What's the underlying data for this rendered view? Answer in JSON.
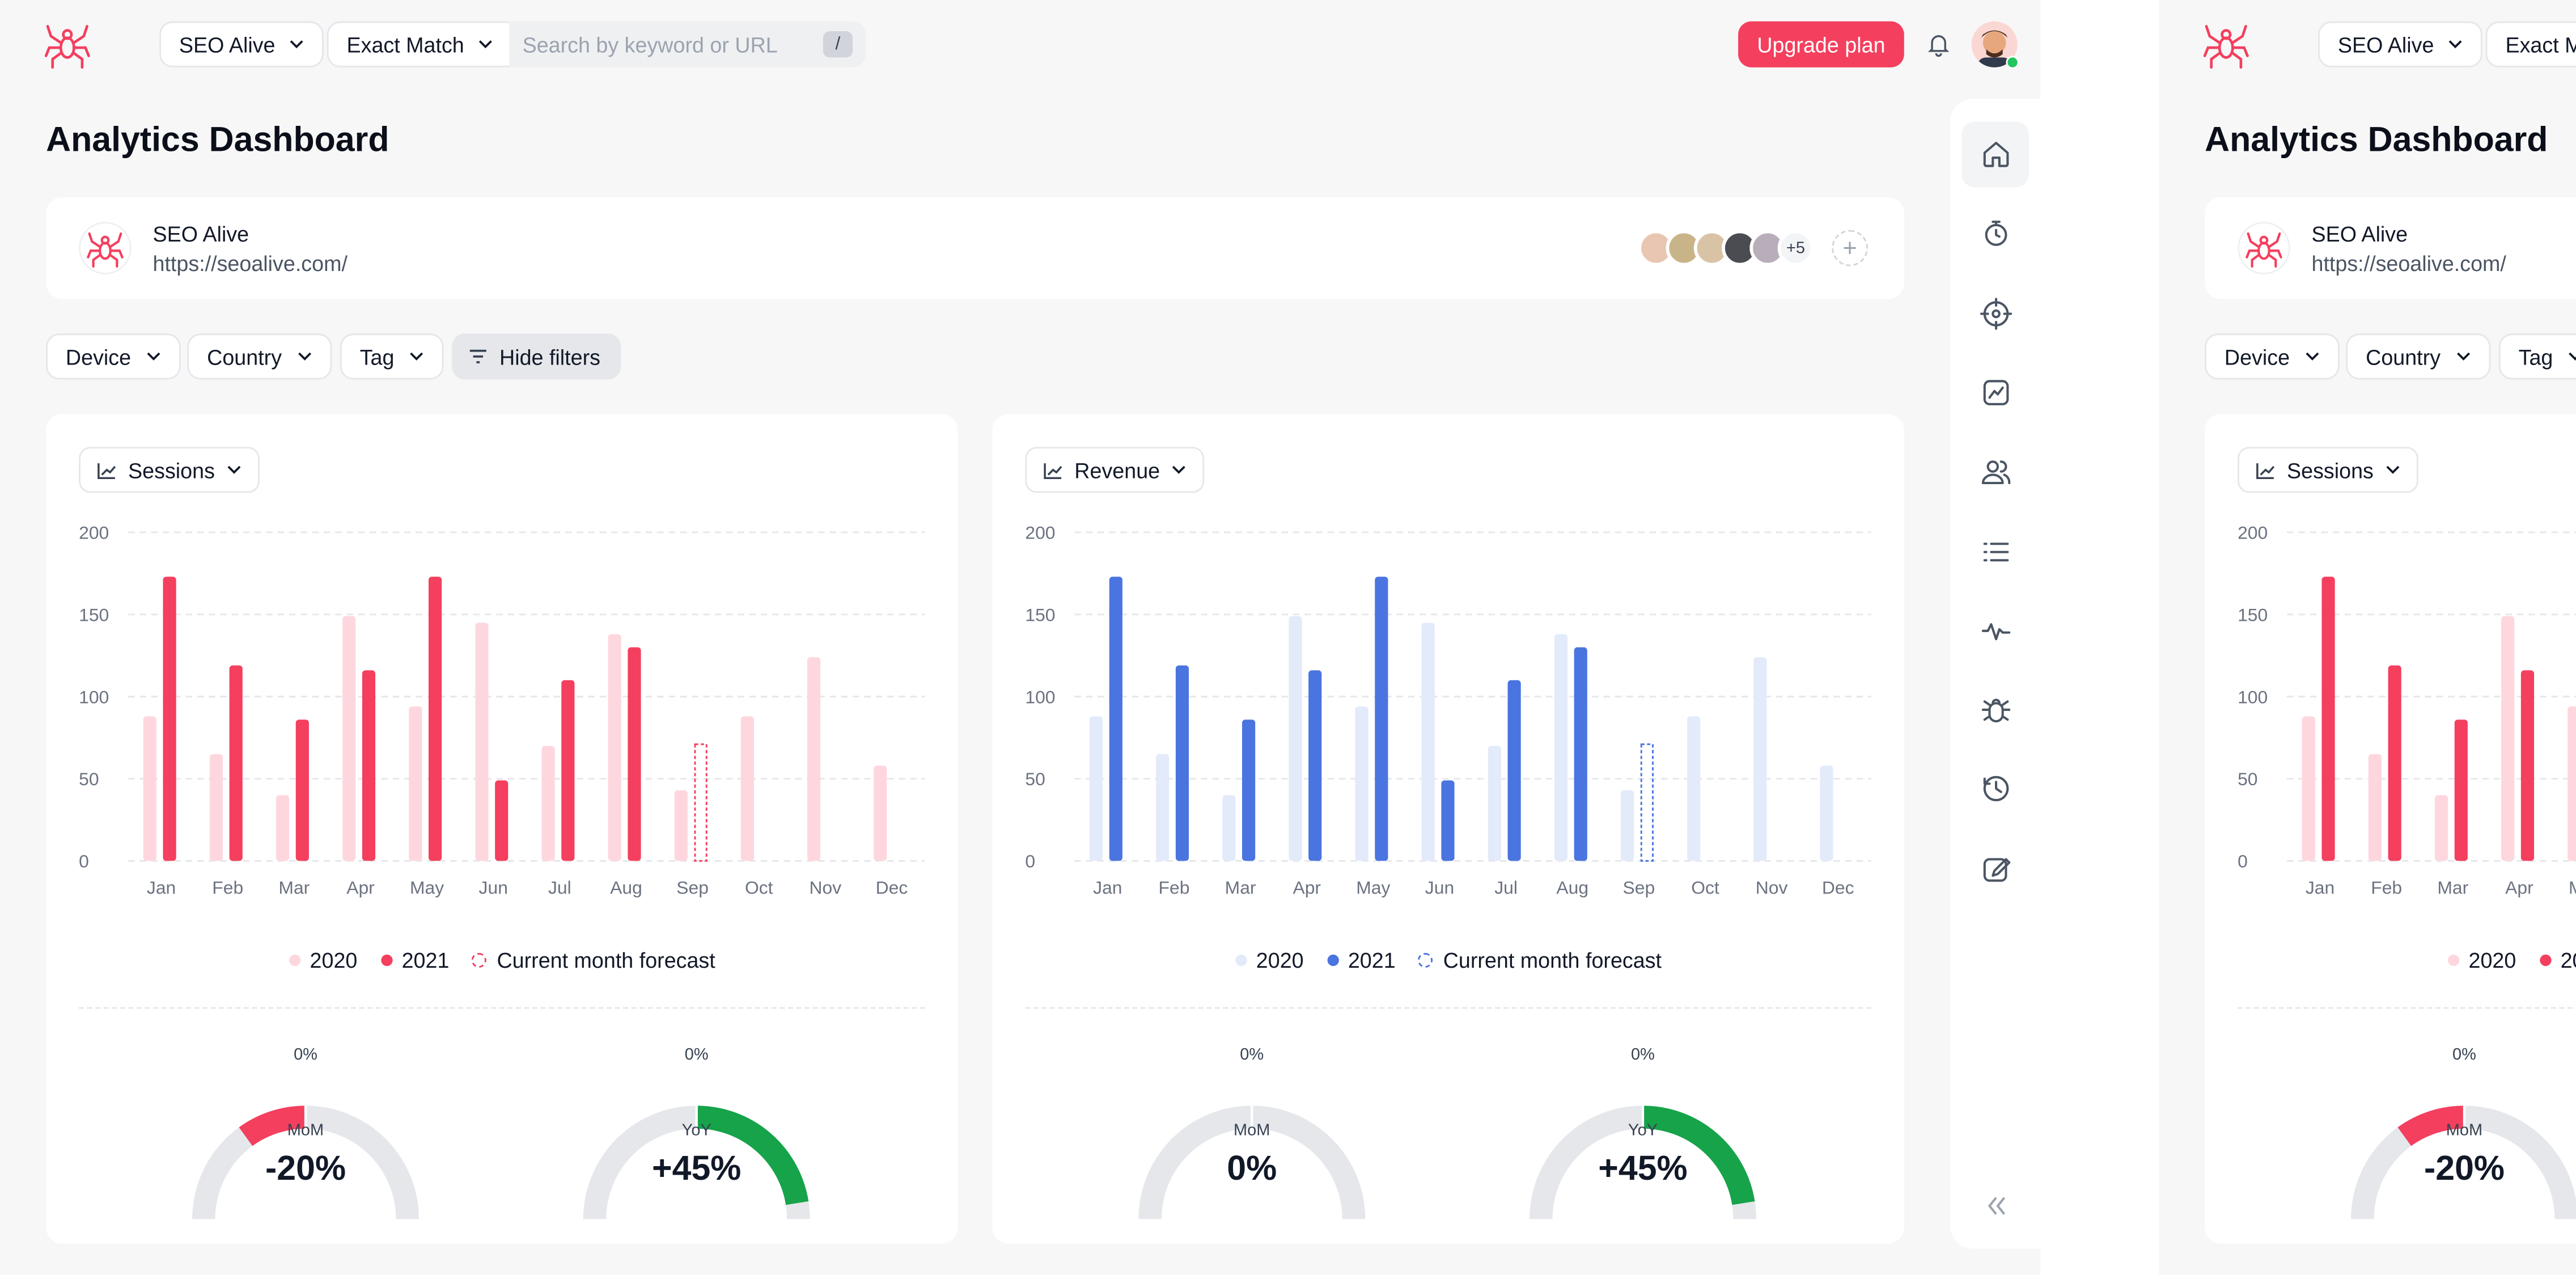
{
  "topbar": {
    "project": "SEO Alive",
    "match_mode": "Exact Match",
    "search_placeholder": "Search by keyword or URL",
    "search_shortcut": "/",
    "upgrade": "Upgrade plan"
  },
  "page": {
    "title": "Analytics Dashboard"
  },
  "site": {
    "name": "SEO Alive",
    "url": "https://seoalive.com/",
    "extra_members": "+5"
  },
  "filters": {
    "device": "Device",
    "country": "Country",
    "tag": "Tag",
    "hide_filters": "Hide filters"
  },
  "colors": {
    "brand": "#f43f5e",
    "sessions_2020": "#fed7de",
    "sessions_2021": "#f43f5e",
    "revenue_2020": "#e3eafa",
    "revenue_2021": "#4a74e0",
    "gauge_track": "#e5e7eb",
    "gauge_positive": "#16a34a",
    "gauge_negative": "#f43f5e"
  },
  "sessions_card": {
    "metric": "Sessions",
    "legend": {
      "a": "2020",
      "b": "2021",
      "forecast": "Current month forecast"
    },
    "mom": {
      "top": "0%",
      "label": "MoM",
      "value": "-20%",
      "fraction": -0.2
    },
    "yoy": {
      "top": "0%",
      "label": "YoY",
      "value": "+45%",
      "fraction": 0.45
    }
  },
  "revenue_card": {
    "metric": "Revenue",
    "legend": {
      "a": "2020",
      "b": "2021",
      "forecast": "Current month forecast"
    },
    "mom": {
      "top": "0%",
      "label": "MoM",
      "value": "0%",
      "fraction": 0
    },
    "yoy": {
      "top": "0%",
      "label": "YoY",
      "value": "+45%",
      "fraction": 0.45
    }
  },
  "sidebar": {
    "icons": [
      "home-icon",
      "timer-icon",
      "target-icon",
      "trend-chart-icon",
      "users-icon",
      "list-icon",
      "activity-icon",
      "bug-icon",
      "history-icon",
      "edit-icon"
    ]
  },
  "chart_data": [
    {
      "type": "bar",
      "categories": [
        "Jan",
        "Feb",
        "Mar",
        "Apr",
        "May",
        "Jun",
        "Jul",
        "Aug",
        "Sep",
        "Oct",
        "Nov",
        "Dec"
      ],
      "series": [
        {
          "name": "2020",
          "values": [
            88,
            65,
            40,
            149,
            94,
            145,
            70,
            138,
            43,
            88,
            124,
            58
          ]
        },
        {
          "name": "2021",
          "values": [
            173,
            119,
            86,
            116,
            173,
            49,
            110,
            130,
            null,
            null,
            null,
            null
          ]
        },
        {
          "name": "Current month forecast",
          "values": [
            null,
            null,
            null,
            null,
            null,
            null,
            null,
            null,
            71,
            null,
            null,
            null
          ]
        }
      ],
      "yticks": [
        0,
        50,
        100,
        150,
        200
      ],
      "ylim": [
        0,
        200
      ],
      "grid": true,
      "legend": "bottom"
    },
    {
      "type": "bar",
      "categories": [
        "Jan",
        "Feb",
        "Mar",
        "Apr",
        "May",
        "Jun",
        "Jul",
        "Aug",
        "Sep",
        "Oct",
        "Nov",
        "Dec"
      ],
      "series": [
        {
          "name": "2020",
          "values": [
            88,
            65,
            40,
            149,
            94,
            145,
            70,
            138,
            43,
            88,
            124,
            58
          ]
        },
        {
          "name": "2021",
          "values": [
            173,
            119,
            86,
            116,
            173,
            49,
            110,
            130,
            null,
            null,
            null,
            null
          ]
        },
        {
          "name": "Current month forecast",
          "values": [
            null,
            null,
            null,
            null,
            null,
            null,
            null,
            null,
            71,
            null,
            null,
            null
          ]
        }
      ],
      "yticks": [
        0,
        50,
        100,
        150,
        200
      ],
      "ylim": [
        0,
        200
      ],
      "grid": true,
      "legend": "bottom"
    }
  ]
}
